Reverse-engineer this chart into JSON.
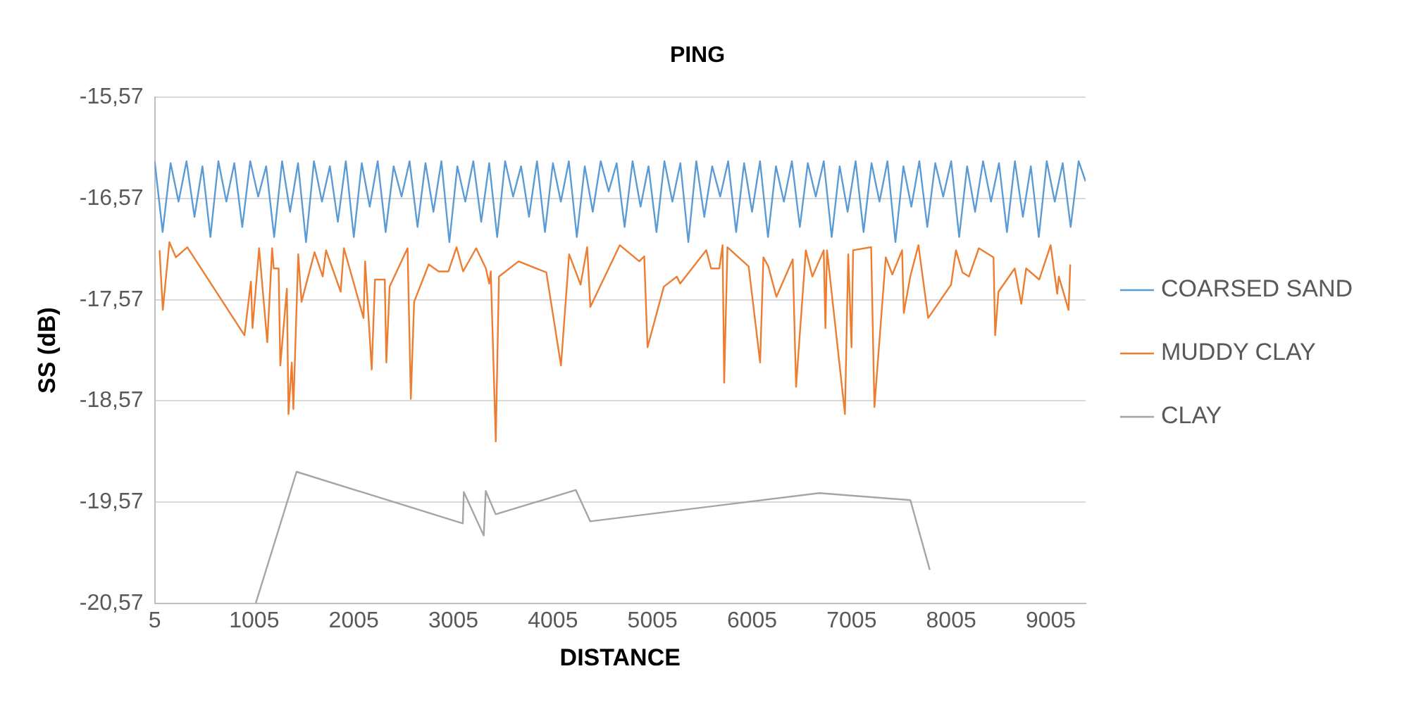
{
  "chart_data": {
    "type": "line",
    "title": "PING",
    "xlabel": "DISTANCE",
    "ylabel": "SS (dB)",
    "xlim": [
      5,
      9355
    ],
    "xticks": [
      5,
      1005,
      2005,
      3005,
      4005,
      5005,
      6005,
      7005,
      8005,
      9005
    ],
    "ylim": [
      -20.57,
      -15.57
    ],
    "yticks": [
      {
        "value": -20.57,
        "label": "-20,57"
      },
      {
        "value": -19.57,
        "label": "-19,57"
      },
      {
        "value": -18.57,
        "label": "-18,57"
      },
      {
        "value": -17.57,
        "label": "-17,57"
      },
      {
        "value": -16.57,
        "label": "-16,57"
      },
      {
        "value": -15.57,
        "label": "-15,57"
      }
    ],
    "grid": "y",
    "legend": "right",
    "marker": "none",
    "line_style": "solid",
    "series": [
      {
        "name": "COARSED SAND",
        "color": "#5b9bd5",
        "x": [
          5,
          85,
          165,
          245,
          325,
          405,
          485,
          565,
          645,
          725,
          805,
          885,
          965,
          1045,
          1125,
          1205,
          1285,
          1365,
          1445,
          1525,
          1605,
          1685,
          1765,
          1845,
          1925,
          2005,
          2085,
          2165,
          2245,
          2325,
          2405,
          2485,
          2565,
          2645,
          2725,
          2805,
          2885,
          2965,
          3045,
          3125,
          3205,
          3285,
          3365,
          3445,
          3525,
          3605,
          3685,
          3765,
          3845,
          3925,
          4005,
          4085,
          4165,
          4245,
          4325,
          4405,
          4485,
          4565,
          4645,
          4725,
          4805,
          4885,
          4965,
          5045,
          5125,
          5205,
          5285,
          5365,
          5445,
          5525,
          5605,
          5685,
          5765,
          5845,
          5925,
          6005,
          6085,
          6165,
          6245,
          6325,
          6405,
          6485,
          6565,
          6645,
          6725,
          6805,
          6885,
          6965,
          7045,
          7125,
          7205,
          7285,
          7365,
          7445,
          7525,
          7605,
          7685,
          7765,
          7845,
          7925,
          8005,
          8085,
          8165,
          8245,
          8325,
          8405,
          8485,
          8565,
          8645,
          8725,
          8805,
          8885,
          8965,
          9045,
          9125,
          9205,
          9285,
          9355
        ],
        "values": [
          -16.2,
          -16.9,
          -16.22,
          -16.6,
          -16.2,
          -16.75,
          -16.25,
          -16.95,
          -16.2,
          -16.6,
          -16.22,
          -16.85,
          -16.2,
          -16.55,
          -16.25,
          -16.95,
          -16.2,
          -16.7,
          -16.22,
          -17.0,
          -16.2,
          -16.6,
          -16.25,
          -16.8,
          -16.2,
          -16.95,
          -16.22,
          -16.65,
          -16.2,
          -16.9,
          -16.25,
          -16.55,
          -16.2,
          -16.85,
          -16.22,
          -16.7,
          -16.2,
          -17.0,
          -16.25,
          -16.6,
          -16.2,
          -16.8,
          -16.22,
          -16.95,
          -16.2,
          -16.55,
          -16.25,
          -16.75,
          -16.2,
          -16.9,
          -16.22,
          -16.6,
          -16.2,
          -16.95,
          -16.25,
          -16.7,
          -16.2,
          -16.5,
          -16.22,
          -16.85,
          -16.2,
          -16.65,
          -16.25,
          -16.9,
          -16.2,
          -16.6,
          -16.22,
          -17.0,
          -16.2,
          -16.75,
          -16.25,
          -16.55,
          -16.2,
          -16.9,
          -16.22,
          -16.7,
          -16.2,
          -16.95,
          -16.25,
          -16.6,
          -16.2,
          -16.85,
          -16.22,
          -16.55,
          -16.2,
          -16.95,
          -16.25,
          -16.7,
          -16.2,
          -16.9,
          -16.22,
          -16.6,
          -16.2,
          -17.0,
          -16.25,
          -16.65,
          -16.2,
          -16.85,
          -16.22,
          -16.55,
          -16.2,
          -16.95,
          -16.25,
          -16.7,
          -16.2,
          -16.6,
          -16.22,
          -16.9,
          -16.2,
          -16.75,
          -16.25,
          -16.95,
          -16.2,
          -16.6,
          -16.22,
          -16.85,
          -16.2,
          -16.4
        ]
      },
      {
        "name": "MUDDY CLAY",
        "color": "#ed7d31",
        "x": [
          54,
          87,
          153,
          218,
          333,
          907,
          972,
          988,
          1054,
          1136,
          1185,
          1201,
          1250,
          1267,
          1333,
          1349,
          1382,
          1398,
          1447,
          1480,
          1611,
          1693,
          1726,
          1873,
          1906,
          2103,
          2119,
          2185,
          2218,
          2316,
          2332,
          2365,
          2545,
          2578,
          2611,
          2758,
          2857,
          2955,
          3037,
          3103,
          3234,
          3332,
          3365,
          3381,
          3431,
          3463,
          3660,
          3939,
          4086,
          4168,
          4283,
          4349,
          4381,
          4676,
          4873,
          4922,
          4955,
          5119,
          5250,
          5283,
          5545,
          5594,
          5676,
          5709,
          5725,
          5758,
          5971,
          6086,
          6119,
          6168,
          6250,
          6414,
          6447,
          6545,
          6611,
          6725,
          6742,
          6758,
          6938,
          6971,
          7004,
          7020,
          7201,
          7234,
          7348,
          7414,
          7512,
          7529,
          7594,
          7676,
          7774,
          8004,
          8053,
          8119,
          8184,
          8283,
          8430,
          8447,
          8480,
          8643,
          8709,
          8758,
          8889,
          9004,
          9070,
          9086,
          9184,
          9201
        ],
        "values": [
          -17.08,
          -17.67,
          -17.0,
          -17.15,
          -17.05,
          -17.92,
          -17.39,
          -17.85,
          -17.06,
          -17.99,
          -17.06,
          -17.26,
          -17.26,
          -18.22,
          -17.46,
          -18.7,
          -18.19,
          -18.65,
          -17.12,
          -17.59,
          -17.1,
          -17.34,
          -17.08,
          -17.49,
          -17.06,
          -17.75,
          -17.19,
          -18.26,
          -17.37,
          -17.37,
          -18.19,
          -17.44,
          -17.06,
          -18.55,
          -17.59,
          -17.22,
          -17.29,
          -17.29,
          -17.05,
          -17.29,
          -17.06,
          -17.26,
          -17.41,
          -17.29,
          -18.97,
          -17.34,
          -17.19,
          -17.3,
          -18.22,
          -17.12,
          -17.42,
          -17.05,
          -17.64,
          -17.03,
          -17.19,
          -17.14,
          -18.04,
          -17.44,
          -17.34,
          -17.41,
          -17.08,
          -17.26,
          -17.26,
          -17.03,
          -18.39,
          -17.05,
          -17.24,
          -18.19,
          -17.15,
          -17.24,
          -17.54,
          -17.17,
          -18.43,
          -17.08,
          -17.34,
          -17.08,
          -17.85,
          -17.08,
          -18.7,
          -17.12,
          -18.04,
          -17.08,
          -17.05,
          -18.63,
          -17.15,
          -17.32,
          -17.08,
          -17.7,
          -17.34,
          -17.03,
          -17.75,
          -17.42,
          -17.08,
          -17.3,
          -17.34,
          -17.06,
          -17.15,
          -17.92,
          -17.49,
          -17.26,
          -17.61,
          -17.26,
          -17.37,
          -17.03,
          -17.51,
          -17.34,
          -17.67,
          -17.22
        ]
      },
      {
        "name": "CLAY",
        "color": "#a5a5a5",
        "x": [
          1020,
          1430,
          3100,
          3110,
          3310,
          3330,
          3430,
          4235,
          4380,
          6680,
          7595,
          7790
        ],
        "values": [
          -20.57,
          -19.27,
          -19.78,
          -19.47,
          -19.9,
          -19.46,
          -19.69,
          -19.45,
          -19.76,
          -19.48,
          -19.55,
          -20.24
        ]
      }
    ]
  }
}
